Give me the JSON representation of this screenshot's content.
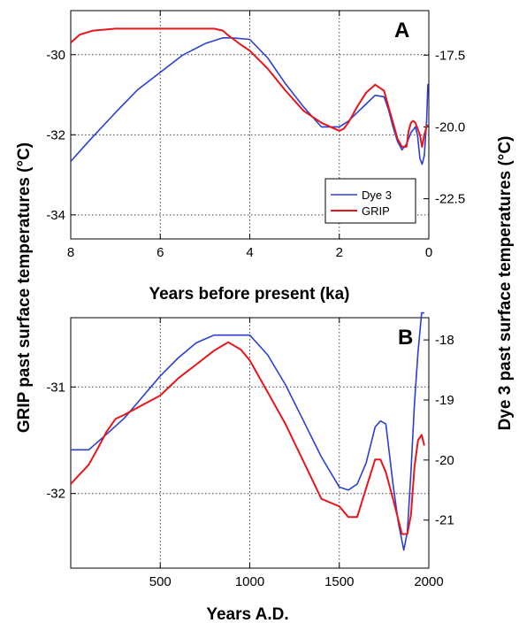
{
  "figure": {
    "left_axis_title": "GRIP past surface temperatures (°C)",
    "right_axis_title": "Dye 3 past surface temperatures (°C)"
  },
  "colors": {
    "dye3": "#2a3fd8",
    "grip": "#e8151b"
  },
  "chart_data": [
    {
      "type": "line",
      "panel_label": "A",
      "xlabel": "Years before present (ka)",
      "xlim": [
        8,
        0
      ],
      "x_ticks": [
        8,
        6,
        4,
        2,
        0
      ],
      "x_tick_labels": [
        "8",
        "6",
        "4",
        "2",
        "0"
      ],
      "left_ylim": [
        -34.6,
        -28.9
      ],
      "left_ticks": [
        -30,
        -32,
        -34
      ],
      "left_tick_labels": [
        "-30",
        "-32",
        "-34"
      ],
      "right_ylim": [
        -23.9,
        -15.95
      ],
      "right_ticks": [
        -17.5,
        -20,
        -22.5
      ],
      "right_tick_labels": [
        "-17.5",
        "-20.0",
        "-22.5"
      ],
      "grid": true,
      "legend_position": "lower-right",
      "series": [
        {
          "name": "Dye 3",
          "color": "#2a3fd8",
          "axis": "right",
          "x": [
            8.0,
            7.6,
            7.0,
            6.5,
            6.0,
            5.5,
            5.0,
            4.6,
            4.4,
            4.0,
            3.6,
            3.2,
            2.8,
            2.4,
            2.2,
            2.0,
            1.8,
            1.6,
            1.4,
            1.2,
            1.0,
            0.9,
            0.8,
            0.7,
            0.6,
            0.5,
            0.4,
            0.3,
            0.25,
            0.2,
            0.15,
            0.1,
            0.05,
            0.02
          ],
          "y": [
            -21.2,
            -20.5,
            -19.5,
            -18.7,
            -18.1,
            -17.5,
            -17.1,
            -16.9,
            -16.9,
            -16.95,
            -17.6,
            -18.5,
            -19.3,
            -20.0,
            -20.0,
            -20.0,
            -19.8,
            -19.5,
            -19.2,
            -18.9,
            -18.95,
            -19.4,
            -20.0,
            -20.5,
            -20.8,
            -20.6,
            -20.2,
            -20.0,
            -20.3,
            -21.1,
            -21.3,
            -21.0,
            -19.8,
            -18.5
          ]
        },
        {
          "name": "GRIP",
          "color": "#e8151b",
          "axis": "left",
          "x": [
            8.0,
            7.8,
            7.5,
            7.0,
            6.5,
            6.0,
            5.5,
            5.0,
            4.8,
            4.6,
            4.5,
            4.2,
            4.0,
            3.6,
            3.2,
            2.8,
            2.4,
            2.2,
            2.0,
            1.9,
            1.8,
            1.6,
            1.4,
            1.2,
            1.0,
            0.9,
            0.8,
            0.7,
            0.6,
            0.5,
            0.45,
            0.4,
            0.35,
            0.3,
            0.2,
            0.15,
            0.1,
            0.05,
            0.02
          ],
          "y": [
            -29.7,
            -29.5,
            -29.4,
            -29.35,
            -29.35,
            -29.35,
            -29.35,
            -29.35,
            -29.35,
            -29.4,
            -29.5,
            -29.75,
            -29.9,
            -30.35,
            -30.9,
            -31.4,
            -31.7,
            -31.8,
            -31.9,
            -31.85,
            -31.7,
            -31.3,
            -30.95,
            -30.75,
            -30.9,
            -31.3,
            -31.7,
            -32.1,
            -32.3,
            -32.3,
            -31.9,
            -31.7,
            -31.65,
            -31.7,
            -32.0,
            -32.3,
            -32.0,
            -31.8,
            -31.75
          ]
        }
      ]
    },
    {
      "type": "line",
      "panel_label": "B",
      "xlabel": "Years A.D.",
      "xlim": [
        0,
        2000
      ],
      "x_ticks": [
        500,
        1000,
        1500,
        2000
      ],
      "x_tick_labels": [
        "500",
        "1000",
        "1500",
        "2000"
      ],
      "left_ylim": [
        -32.7,
        -30.35
      ],
      "left_ticks": [
        -31,
        -32
      ],
      "left_tick_labels": [
        "-31",
        "-32"
      ],
      "right_ylim": [
        -21.8,
        -17.63
      ],
      "right_ticks": [
        -18,
        -19,
        -20,
        -21
      ],
      "right_tick_labels": [
        "-18",
        "-19",
        "-20",
        "-21"
      ],
      "grid": true,
      "series": [
        {
          "name": "Dye 3",
          "color": "#2a3fd8",
          "axis": "right",
          "x": [
            0,
            100,
            200,
            300,
            400,
            500,
            600,
            700,
            800,
            900,
            1000,
            1100,
            1200,
            1300,
            1400,
            1500,
            1550,
            1600,
            1650,
            1700,
            1730,
            1760,
            1800,
            1830,
            1860,
            1880,
            1900,
            1920,
            1940,
            1960,
            1975
          ],
          "y": [
            -19.83,
            -19.83,
            -19.57,
            -19.3,
            -18.95,
            -18.6,
            -18.3,
            -18.05,
            -17.92,
            -17.92,
            -17.92,
            -18.25,
            -18.75,
            -19.35,
            -19.95,
            -20.45,
            -20.5,
            -20.4,
            -20.05,
            -19.45,
            -19.35,
            -19.4,
            -20.4,
            -21.05,
            -21.5,
            -21.2,
            -20.2,
            -19.05,
            -18.2,
            -17.55,
            -17.55
          ]
        },
        {
          "name": "GRIP",
          "color": "#e8151b",
          "axis": "left",
          "x": [
            0,
            100,
            150,
            200,
            250,
            300,
            400,
            500,
            600,
            700,
            800,
            880,
            950,
            1000,
            1100,
            1200,
            1300,
            1400,
            1500,
            1550,
            1600,
            1650,
            1700,
            1730,
            1760,
            1800,
            1850,
            1880,
            1900,
            1920,
            1940,
            1960,
            1975
          ],
          "y": [
            -31.91,
            -31.73,
            -31.58,
            -31.42,
            -31.3,
            -31.26,
            -31.17,
            -31.08,
            -30.92,
            -30.79,
            -30.66,
            -30.58,
            -30.65,
            -30.75,
            -31.05,
            -31.35,
            -31.7,
            -32.05,
            -32.12,
            -32.22,
            -32.22,
            -31.95,
            -31.68,
            -31.68,
            -31.8,
            -32.05,
            -32.38,
            -32.38,
            -32.2,
            -31.75,
            -31.5,
            -31.45,
            -31.55
          ]
        }
      ]
    }
  ]
}
